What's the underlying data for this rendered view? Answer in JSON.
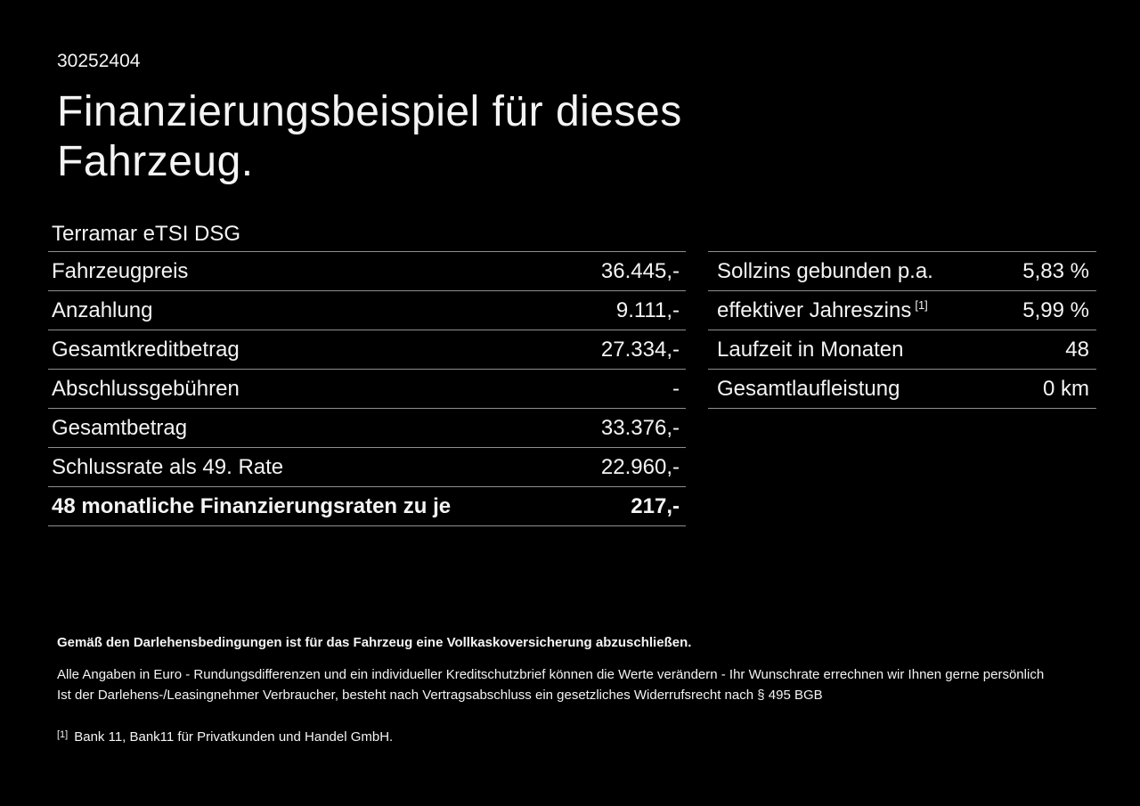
{
  "page": {
    "background": "#000000",
    "text_color": "#f4f4f4",
    "divider_color": "#8f8f8f"
  },
  "header": {
    "vehicle_id": "30252404",
    "title_line1": "Finanzierungsbeispiel für dieses",
    "title_line2": "Fahrzeug."
  },
  "vehicle": {
    "model": "Terramar eTSI DSG"
  },
  "finance_table": {
    "rows": [
      {
        "label": "Fahrzeugpreis",
        "value": "36.445,-"
      },
      {
        "label": "Anzahlung",
        "value": "9.111,-"
      },
      {
        "label": "Gesamtkreditbetrag",
        "value": "27.334,-"
      },
      {
        "label": "Abschlussgebühren",
        "value": "-"
      },
      {
        "label": "Gesamtbetrag",
        "value": "33.376,-"
      },
      {
        "label": "Schlussrate als 49. Rate",
        "value": "22.960,-"
      },
      {
        "label": "48 monatliche Finanzierungsraten zu je",
        "value": "217,-"
      }
    ]
  },
  "conditions_table": {
    "rows": [
      {
        "label": "Sollzins gebunden p.a.",
        "sup": "",
        "value": "5,83 %"
      },
      {
        "label": "effektiver Jahreszins",
        "sup": "[1]",
        "value": "5,99 %"
      },
      {
        "label": "Laufzeit in Monaten",
        "sup": "",
        "value": "48"
      },
      {
        "label": "Gesamtlaufleistung",
        "sup": "",
        "value": "0 km"
      }
    ]
  },
  "footer": {
    "insurance_note": "Gemäß den Darlehensbedingungen ist für das Fahrzeug eine Vollkaskoversicherung abzuschließen.",
    "disclaimer_line1": "Alle Angaben in Euro - Rundungsdifferenzen und ein individueller Kreditschutzbrief können die Werte verändern - Ihr Wunschrate errechnen wir Ihnen gerne persönlich",
    "disclaimer_line2": "Ist der Darlehens-/Leasingnehmer Verbraucher, besteht nach Vertragsabschluss ein gesetzliches Widerrufsrecht nach § 495 BGB",
    "footnote_marker": "[1]",
    "footnote_text": "Bank 11, Bank11 für Privatkunden und Handel GmbH."
  }
}
